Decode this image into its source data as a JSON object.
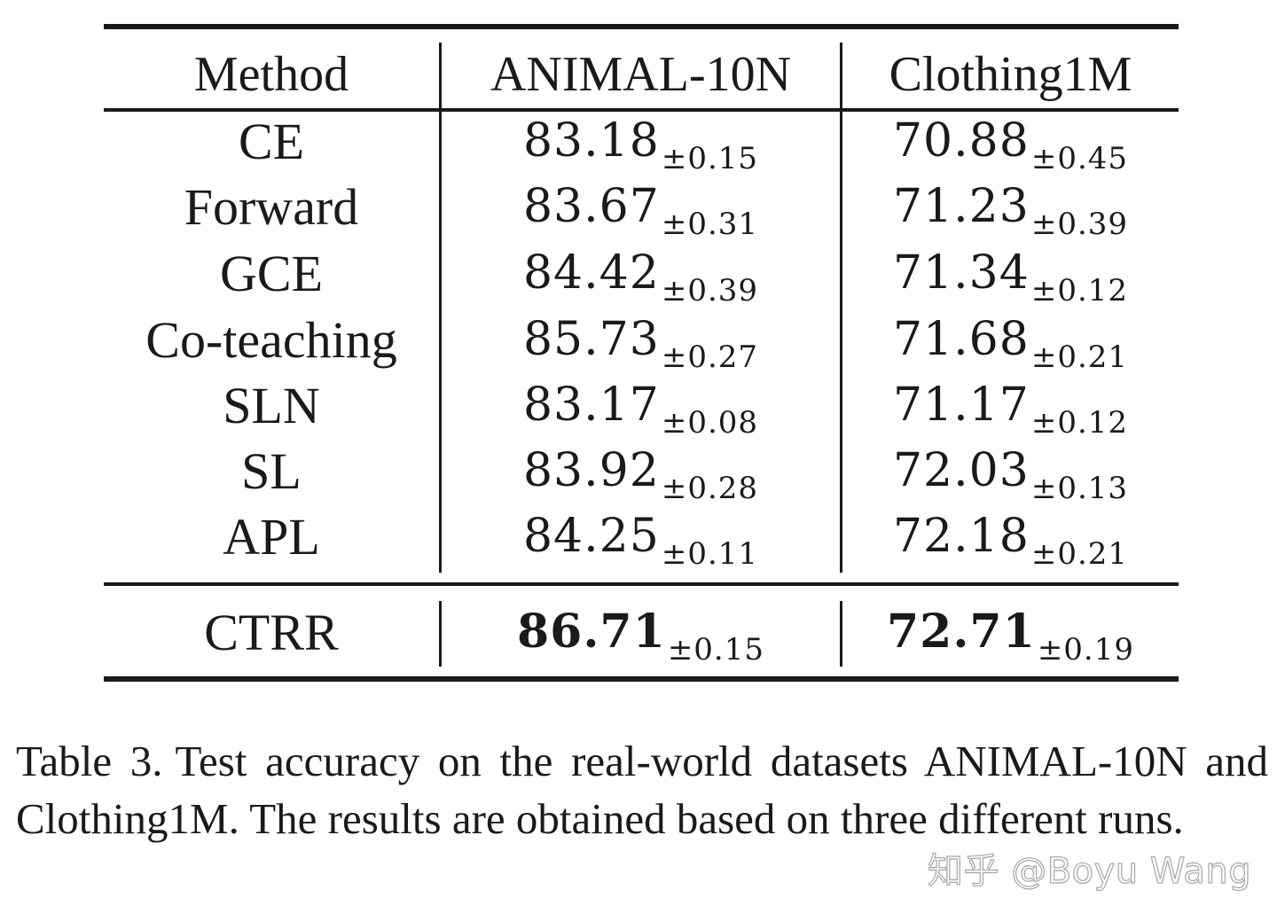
{
  "table": {
    "headers": [
      "Method",
      "ANIMAL-10N",
      "Clothing1M"
    ],
    "rows": [
      {
        "method": "CE",
        "animal": {
          "value": "83.18",
          "std": "±0.15"
        },
        "clothing": {
          "value": "70.88",
          "std": "±0.45"
        }
      },
      {
        "method": "Forward",
        "animal": {
          "value": "83.67",
          "std": "±0.31"
        },
        "clothing": {
          "value": "71.23",
          "std": "±0.39"
        }
      },
      {
        "method": "GCE",
        "animal": {
          "value": "84.42",
          "std": "±0.39"
        },
        "clothing": {
          "value": "71.34",
          "std": "±0.12"
        }
      },
      {
        "method": "Co-teaching",
        "animal": {
          "value": "85.73",
          "std": "±0.27"
        },
        "clothing": {
          "value": "71.68",
          "std": "±0.21"
        }
      },
      {
        "method": "SLN",
        "animal": {
          "value": "83.17",
          "std": "±0.08"
        },
        "clothing": {
          "value": "71.17",
          "std": "±0.12"
        }
      },
      {
        "method": "SL",
        "animal": {
          "value": "83.92",
          "std": "±0.28"
        },
        "clothing": {
          "value": "72.03",
          "std": "±0.13"
        }
      },
      {
        "method": "APL",
        "animal": {
          "value": "84.25",
          "std": "±0.11"
        },
        "clothing": {
          "value": "72.18",
          "std": "±0.21"
        }
      }
    ],
    "proposed": {
      "method": "CTRR",
      "animal": {
        "value": "86.71",
        "std": "±0.15"
      },
      "clothing": {
        "value": "72.71",
        "std": "±0.19"
      }
    }
  },
  "caption": {
    "label": "Table 3.",
    "text": "Test accuracy on the real-world datasets ANIMAL-10N and Clothing1M. The results are obtained based on three different runs."
  },
  "watermark": "知乎 @Boyu Wang"
}
